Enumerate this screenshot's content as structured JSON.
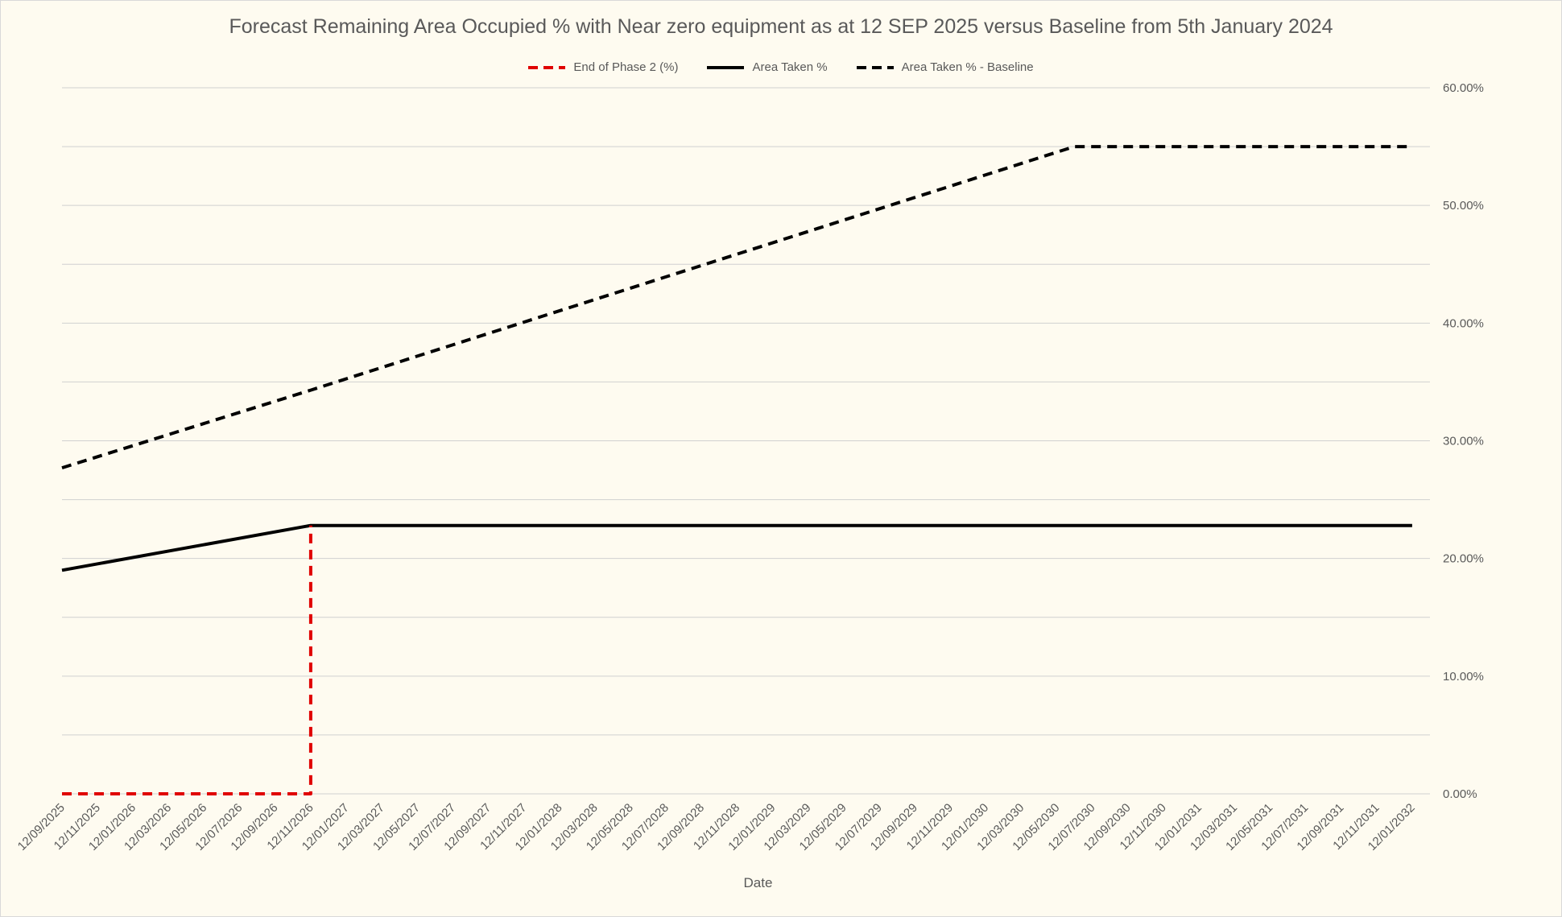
{
  "chart_data": {
    "type": "line",
    "title": "Forecast Remaining Area Occupied % with Near zero equipment as at 12 SEP 2025 versus Baseline from 5th January 2024",
    "xlabel": "Date",
    "ylabel": "",
    "y_axis_side": "right",
    "ylim": [
      0,
      0.6
    ],
    "y_ticks": [
      "0.00%",
      "10.00%",
      "20.00%",
      "30.00%",
      "40.00%",
      "50.00%",
      "60.00%"
    ],
    "grid": true,
    "legend_position": "top",
    "x_categories": [
      "12/09/2025",
      "12/11/2025",
      "12/01/2026",
      "12/03/2026",
      "12/05/2026",
      "12/07/2026",
      "12/09/2026",
      "12/11/2026",
      "12/01/2027",
      "12/03/2027",
      "12/05/2027",
      "12/07/2027",
      "12/09/2027",
      "12/11/2027",
      "12/01/2028",
      "12/03/2028",
      "12/05/2028",
      "12/07/2028",
      "12/09/2028",
      "12/11/2028",
      "12/01/2029",
      "12/03/2029",
      "12/05/2029",
      "12/07/2029",
      "12/09/2029",
      "12/11/2029",
      "12/01/2030",
      "12/03/2030",
      "12/05/2030",
      "12/07/2030",
      "12/09/2030",
      "12/11/2030",
      "12/01/2031",
      "12/03/2031",
      "12/05/2031",
      "12/07/2031",
      "12/09/2031",
      "12/11/2031",
      "12/01/2032"
    ],
    "series": [
      {
        "name": "End of Phase 2 (%)",
        "color": "#e00000",
        "style": "dashed",
        "points": [
          [
            "12/09/2025",
            0
          ],
          [
            "12/11/2026",
            0
          ],
          [
            "12/11/2026",
            0.228
          ]
        ]
      },
      {
        "name": "Area Taken %",
        "color": "#000000",
        "style": "solid",
        "points": [
          [
            "12/09/2025",
            0.19
          ],
          [
            "12/11/2026",
            0.228
          ],
          [
            "12/01/2032",
            0.228
          ]
        ]
      },
      {
        "name": "Area Taken % - Baseline",
        "color": "#000000",
        "style": "dashed",
        "points": [
          [
            "12/09/2025",
            0.277
          ],
          [
            "12/11/2026",
            0.343
          ],
          [
            "12/06/2030",
            0.55
          ],
          [
            "12/01/2032",
            0.55
          ]
        ]
      }
    ]
  }
}
